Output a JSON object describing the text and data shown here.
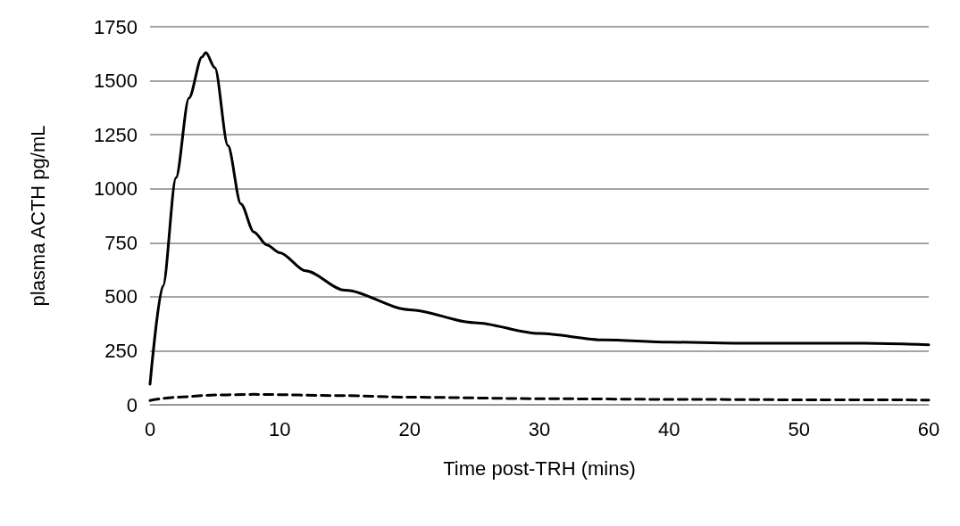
{
  "chart_data": {
    "type": "line",
    "xlabel": "Time post-TRH (mins)",
    "ylabel": "plasma ACTH pg/mL",
    "xlim": [
      0,
      60
    ],
    "xticks": [
      0,
      10,
      20,
      30,
      40,
      50,
      60
    ],
    "ylim": [
      0,
      1750
    ],
    "yticks": [
      0,
      250,
      500,
      750,
      1000,
      1250,
      1500,
      1750
    ],
    "grid": "y",
    "legend": false,
    "marker": "none",
    "series": [
      {
        "color": "#000000",
        "line_style": "solid",
        "x": [
          0,
          1,
          2,
          3,
          4,
          4.3,
          5,
          6,
          7,
          8,
          9,
          10,
          12,
          15,
          20,
          25,
          30,
          35,
          40,
          45,
          50,
          55,
          60
        ],
        "values": [
          95,
          550,
          1050,
          1420,
          1610,
          1630,
          1560,
          1200,
          930,
          800,
          740,
          704,
          620,
          530,
          440,
          380,
          330,
          300,
          290,
          285,
          285,
          285,
          278
        ]
      },
      {
        "color": "#000000",
        "line_style": "dashed",
        "x": [
          0,
          2,
          5,
          8,
          15,
          20,
          30,
          40,
          50,
          60
        ],
        "values": [
          20,
          35,
          45,
          48,
          42,
          35,
          28,
          25,
          23,
          22
        ]
      }
    ]
  }
}
